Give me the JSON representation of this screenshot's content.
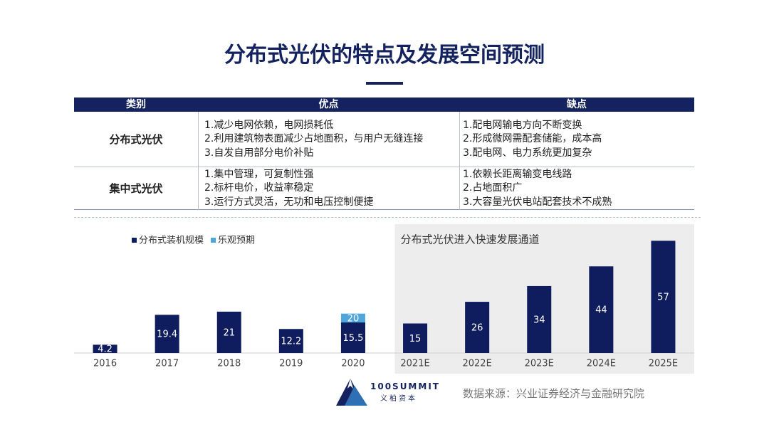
{
  "title": "分布式光伏的特点及发展空间预测",
  "table": {
    "header": [
      "类别",
      "优点",
      "缺点"
    ],
    "rows": [
      {
        "label": "分布式光伏",
        "pros": [
          "1.减少电网依赖，电网损耗低",
          "2.利用建筑物表面减少占地面积，与用户无缝连接",
          "3.自发自用部分电价补贴"
        ],
        "cons": [
          "1.配电网输电方向不断变换",
          "2.形成微网需配套储能，成本高",
          "3.配电网、电力系统更加复杂"
        ]
      },
      {
        "label": "集中式光伏",
        "pros": [
          "1.集中管理，可复制性强",
          "2.标杆电价，收益率稳定",
          "3.运行方式灵活，无功和电压控制便捷"
        ],
        "cons": [
          "1.依赖长距离输变电线路",
          "2.占地面积广",
          "3.大容量光伏电站配套技术不成熟"
        ]
      }
    ]
  },
  "chart_data": {
    "type": "bar",
    "overlap": true,
    "annotation": "分布式光伏进入快速发展通道",
    "categories": [
      "2016",
      "2017",
      "2018",
      "2019",
      "2020",
      "2021E",
      "2022E",
      "2023E",
      "2024E",
      "2025E"
    ],
    "highlight": [
      "2021E",
      "2022E",
      "2023E",
      "2024E",
      "2025E"
    ],
    "series": [
      {
        "name": "分布式装机规模",
        "color": "#0f1c5e",
        "values": [
          4.2,
          19.4,
          21,
          12.2,
          15.5,
          15,
          26,
          34,
          44,
          57
        ]
      },
      {
        "name": "乐观预期",
        "color": "#4ea6dc",
        "values": [
          null,
          null,
          null,
          null,
          20,
          null,
          null,
          null,
          null,
          null
        ]
      }
    ],
    "ylim": [
      0,
      60
    ],
    "legend": "top-left"
  },
  "source": "数据来源：兴业证券经济与金融研究院",
  "logo": {
    "name": "100SUMMIT",
    "subtitle": "义柏资本"
  }
}
